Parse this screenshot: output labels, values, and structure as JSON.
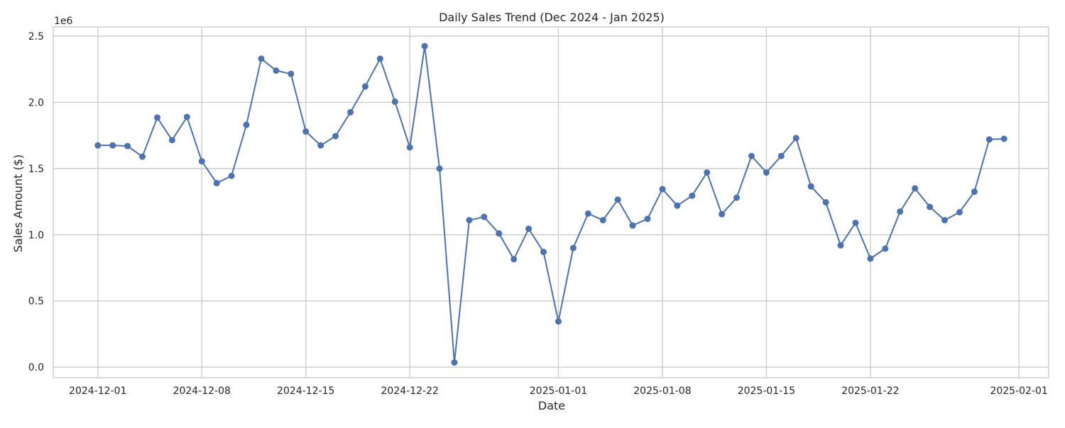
{
  "chart_data": {
    "type": "line",
    "title": "Daily Sales Trend (Dec 2024 - Jan 2025)",
    "xlabel": "Date",
    "ylabel": "Sales Amount ($)",
    "y_offset_label": "1e6",
    "grid": true,
    "xlim": [
      "2024-11-28",
      "2025-02-03"
    ],
    "ylim": [
      -0.08,
      2.57
    ],
    "x_ticks": [
      "2024-12-01",
      "2024-12-08",
      "2024-12-15",
      "2024-12-22",
      "2025-01-01",
      "2025-01-08",
      "2025-01-15",
      "2025-01-22",
      "2025-02-01"
    ],
    "y_ticks": [
      0.0,
      0.5,
      1.0,
      1.5,
      2.0,
      2.5
    ],
    "y_tick_labels": [
      "0.0",
      "0.5",
      "1.0",
      "1.5",
      "2.0",
      "2.5"
    ],
    "series": [
      {
        "color": "#4c72b0",
        "marker": "circle",
        "x": [
          "2024-12-01",
          "2024-12-02",
          "2024-12-03",
          "2024-12-04",
          "2024-12-05",
          "2024-12-06",
          "2024-12-07",
          "2024-12-08",
          "2024-12-09",
          "2024-12-10",
          "2024-12-11",
          "2024-12-12",
          "2024-12-13",
          "2024-12-14",
          "2024-12-15",
          "2024-12-16",
          "2024-12-17",
          "2024-12-18",
          "2024-12-19",
          "2024-12-20",
          "2024-12-21",
          "2024-12-22",
          "2024-12-23",
          "2024-12-24",
          "2024-12-25",
          "2024-12-26",
          "2024-12-27",
          "2024-12-28",
          "2024-12-29",
          "2024-12-30",
          "2024-12-31",
          "2025-01-01",
          "2025-01-02",
          "2025-01-03",
          "2025-01-04",
          "2025-01-05",
          "2025-01-06",
          "2025-01-07",
          "2025-01-08",
          "2025-01-09",
          "2025-01-10",
          "2025-01-11",
          "2025-01-12",
          "2025-01-13",
          "2025-01-14",
          "2025-01-15",
          "2025-01-16",
          "2025-01-17",
          "2025-01-18",
          "2025-01-19",
          "2025-01-20",
          "2025-01-21",
          "2025-01-22",
          "2025-01-23",
          "2025-01-24",
          "2025-01-25",
          "2025-01-26",
          "2025-01-27",
          "2025-01-28",
          "2025-01-29",
          "2025-01-30",
          "2025-01-31"
        ],
        "values": [
          1.675,
          1.675,
          1.67,
          1.59,
          1.885,
          1.715,
          1.89,
          1.555,
          1.39,
          1.445,
          1.83,
          2.33,
          2.24,
          2.215,
          1.78,
          1.675,
          1.745,
          1.925,
          2.12,
          2.33,
          2.005,
          1.66,
          2.425,
          1.5,
          0.035,
          1.11,
          1.135,
          1.01,
          0.815,
          1.045,
          0.87,
          0.345,
          0.9,
          1.16,
          1.11,
          1.265,
          1.07,
          1.12,
          1.345,
          1.22,
          1.295,
          1.47,
          1.155,
          1.28,
          1.595,
          1.47,
          1.595,
          1.73,
          1.365,
          1.245,
          0.92,
          1.09,
          0.82,
          0.895,
          1.175,
          1.35,
          1.21,
          1.11,
          1.17,
          1.325,
          1.72,
          1.725
        ]
      }
    ]
  }
}
